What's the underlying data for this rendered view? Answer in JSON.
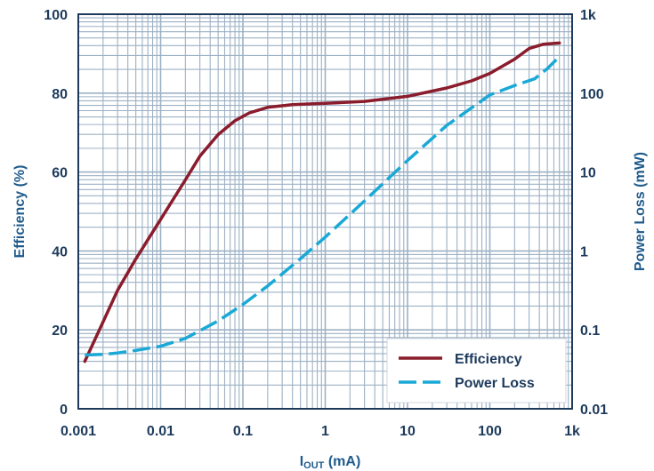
{
  "chart_data": {
    "type": "line",
    "x_scale": "log",
    "xlim": [
      0.001,
      1000
    ],
    "ylim_left": [
      0,
      100
    ],
    "ylim_right": [
      0.01,
      1000
    ],
    "right_scale": "log",
    "grid": true,
    "legend_position": "bottom-right",
    "x_tick_labels": [
      "0.001",
      "0.01",
      "0.1",
      "1",
      "10",
      "100",
      "1k"
    ],
    "left_tick_labels": [
      "0",
      "20",
      "40",
      "60",
      "80",
      "100"
    ],
    "right_tick_labels": [
      "0.01",
      "0.1",
      "1",
      "10",
      "100",
      "1k"
    ],
    "ylabel_left": "Efficiency (%)",
    "ylabel_right": "Power Loss (mW)",
    "xlabel": {
      "main": "I",
      "subscript": "OUT",
      "unit": " (mA)"
    },
    "series": [
      {
        "name": "Efficiency",
        "axis": "left",
        "color": "#8a1c2c",
        "dash": "solid",
        "points": [
          [
            0.0012,
            12
          ],
          [
            0.002,
            22
          ],
          [
            0.003,
            30
          ],
          [
            0.005,
            38
          ],
          [
            0.01,
            48
          ],
          [
            0.02,
            58
          ],
          [
            0.03,
            64
          ],
          [
            0.05,
            69.5
          ],
          [
            0.08,
            73
          ],
          [
            0.12,
            75
          ],
          [
            0.2,
            76.4
          ],
          [
            0.4,
            77.1
          ],
          [
            1,
            77.4
          ],
          [
            3,
            77.9
          ],
          [
            10,
            79.2
          ],
          [
            30,
            81.3
          ],
          [
            60,
            83.1
          ],
          [
            100,
            85
          ],
          [
            200,
            88.6
          ],
          [
            300,
            91.3
          ],
          [
            450,
            92.4
          ],
          [
            700,
            92.7
          ]
        ]
      },
      {
        "name": "Power Loss",
        "axis": "right",
        "color": "#1aa9d6",
        "dash": "dashed",
        "points": [
          [
            0.0012,
            0.048
          ],
          [
            0.002,
            0.049
          ],
          [
            0.003,
            0.051
          ],
          [
            0.005,
            0.055
          ],
          [
            0.01,
            0.062
          ],
          [
            0.02,
            0.078
          ],
          [
            0.05,
            0.13
          ],
          [
            0.1,
            0.21
          ],
          [
            0.2,
            0.36
          ],
          [
            0.5,
            0.8
          ],
          [
            1,
            1.5
          ],
          [
            3,
            4.3
          ],
          [
            10,
            14
          ],
          [
            30,
            39
          ],
          [
            100,
            95
          ],
          [
            200,
            125
          ],
          [
            350,
            152
          ],
          [
            500,
            205
          ],
          [
            700,
            290
          ]
        ]
      }
    ]
  }
}
